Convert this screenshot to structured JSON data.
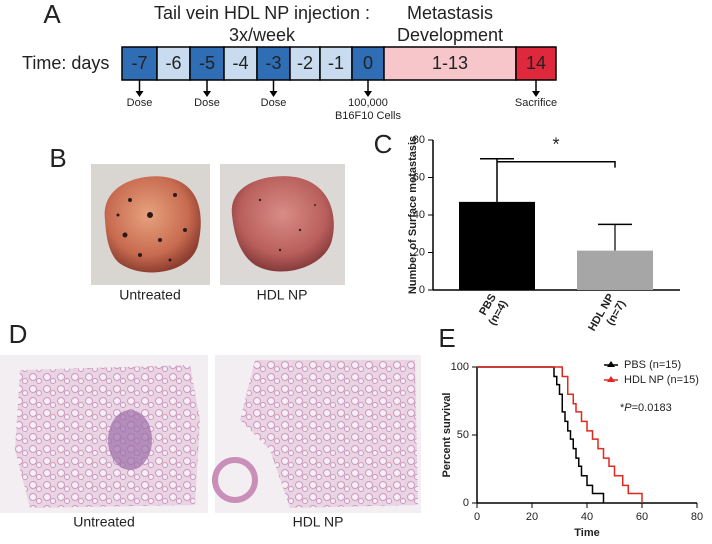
{
  "timeline": {
    "panel_label": "A",
    "left_label": "Time: days",
    "injection_title": [
      "Tail vein HDL NP injection :",
      "3x/week"
    ],
    "metastasis_title": [
      "Metastasis",
      "Development"
    ],
    "cells": [
      {
        "label": "-7",
        "color": "#2f6db5"
      },
      {
        "label": "-6",
        "color": "#c9dcef"
      },
      {
        "label": "-5",
        "color": "#2f6db5"
      },
      {
        "label": "-4",
        "color": "#c9dcef"
      },
      {
        "label": "-3",
        "color": "#2f6db5"
      },
      {
        "label": "-2",
        "color": "#c9dcef"
      },
      {
        "label": "-1",
        "color": "#c9dcef"
      },
      {
        "label": "0",
        "color": "#2f6db5"
      },
      {
        "label": "1-13",
        "color": "#f6c6cb"
      },
      {
        "label": "14",
        "color": "#e0283c"
      }
    ],
    "events": [
      {
        "cell": 0,
        "lines": [
          "Dose"
        ]
      },
      {
        "cell": 2,
        "lines": [
          "Dose"
        ]
      },
      {
        "cell": 4,
        "lines": [
          "Dose"
        ]
      },
      {
        "cell": 7,
        "lines": [
          "100,000",
          "B16F10 Cells"
        ]
      },
      {
        "cell": 9,
        "lines": [
          "Sacrifice"
        ]
      }
    ]
  },
  "panel_b": {
    "panel_label": "B",
    "captions": [
      "Untreated",
      "HDL NP"
    ]
  },
  "panel_d": {
    "panel_label": "D",
    "captions": [
      "Untreated",
      "HDL NP"
    ]
  },
  "chart_data": [
    {
      "type": "bar",
      "panel_label": "C",
      "y_label": "Number of Surface metastasis",
      "categories": [
        "PBS",
        "HDL NP"
      ],
      "category_notes": [
        "(n=4)",
        "(n=7)"
      ],
      "values": [
        47,
        21
      ],
      "errors": [
        23,
        14
      ],
      "colors": [
        "#000000",
        "#a6a6a6"
      ],
      "ylim": [
        0,
        80
      ],
      "yticks": [
        0,
        20,
        40,
        60,
        80
      ],
      "annotation": "*"
    },
    {
      "type": "line",
      "panel_label": "E",
      "x_label": "Time",
      "y_label": "Percent survival",
      "xlim": [
        0,
        80
      ],
      "xticks": [
        0,
        20,
        40,
        60,
        80
      ],
      "ylim": [
        0,
        100
      ],
      "yticks": [
        0,
        50,
        100
      ],
      "annotation_parts": [
        "*",
        "P",
        "=0.0183"
      ],
      "series": [
        {
          "name": "PBS (n=15)",
          "color": "#000000",
          "x": [
            0,
            28,
            29,
            30,
            31,
            32,
            33,
            34,
            35,
            36,
            37,
            38,
            40,
            42,
            46
          ],
          "values": [
            100,
            93,
            87,
            80,
            67,
            60,
            53,
            47,
            40,
            33,
            27,
            20,
            13,
            7,
            0
          ]
        },
        {
          "name": "HDL NP (n=15)",
          "color": "#e0281e",
          "x": [
            0,
            31,
            33,
            35,
            36,
            38,
            40,
            42,
            44,
            46,
            48,
            50,
            53,
            55,
            60
          ],
          "values": [
            100,
            93,
            80,
            73,
            67,
            60,
            53,
            47,
            40,
            33,
            27,
            20,
            13,
            7,
            0
          ]
        }
      ]
    }
  ]
}
